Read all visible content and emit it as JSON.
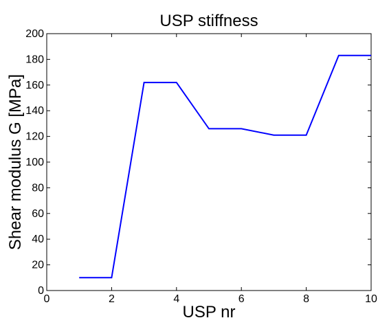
{
  "chart_data": {
    "type": "line",
    "title": "USP stiffness",
    "xlabel": "USP nr",
    "ylabel": "Shear modulus G [MPa]",
    "xlim": [
      0,
      10
    ],
    "ylim": [
      0,
      200
    ],
    "xticks": [
      "0",
      "2",
      "4",
      "6",
      "8",
      "10"
    ],
    "yticks": [
      "0",
      "20",
      "40",
      "60",
      "80",
      "100",
      "120",
      "140",
      "160",
      "180",
      "200"
    ],
    "grid": false,
    "series": [
      {
        "color": "#0000ff",
        "x": [
          1,
          2,
          3,
          4,
          5,
          6,
          7,
          8,
          9,
          10
        ],
        "y": [
          10,
          10,
          162,
          162,
          126,
          126,
          121,
          121,
          183,
          183
        ]
      }
    ]
  }
}
